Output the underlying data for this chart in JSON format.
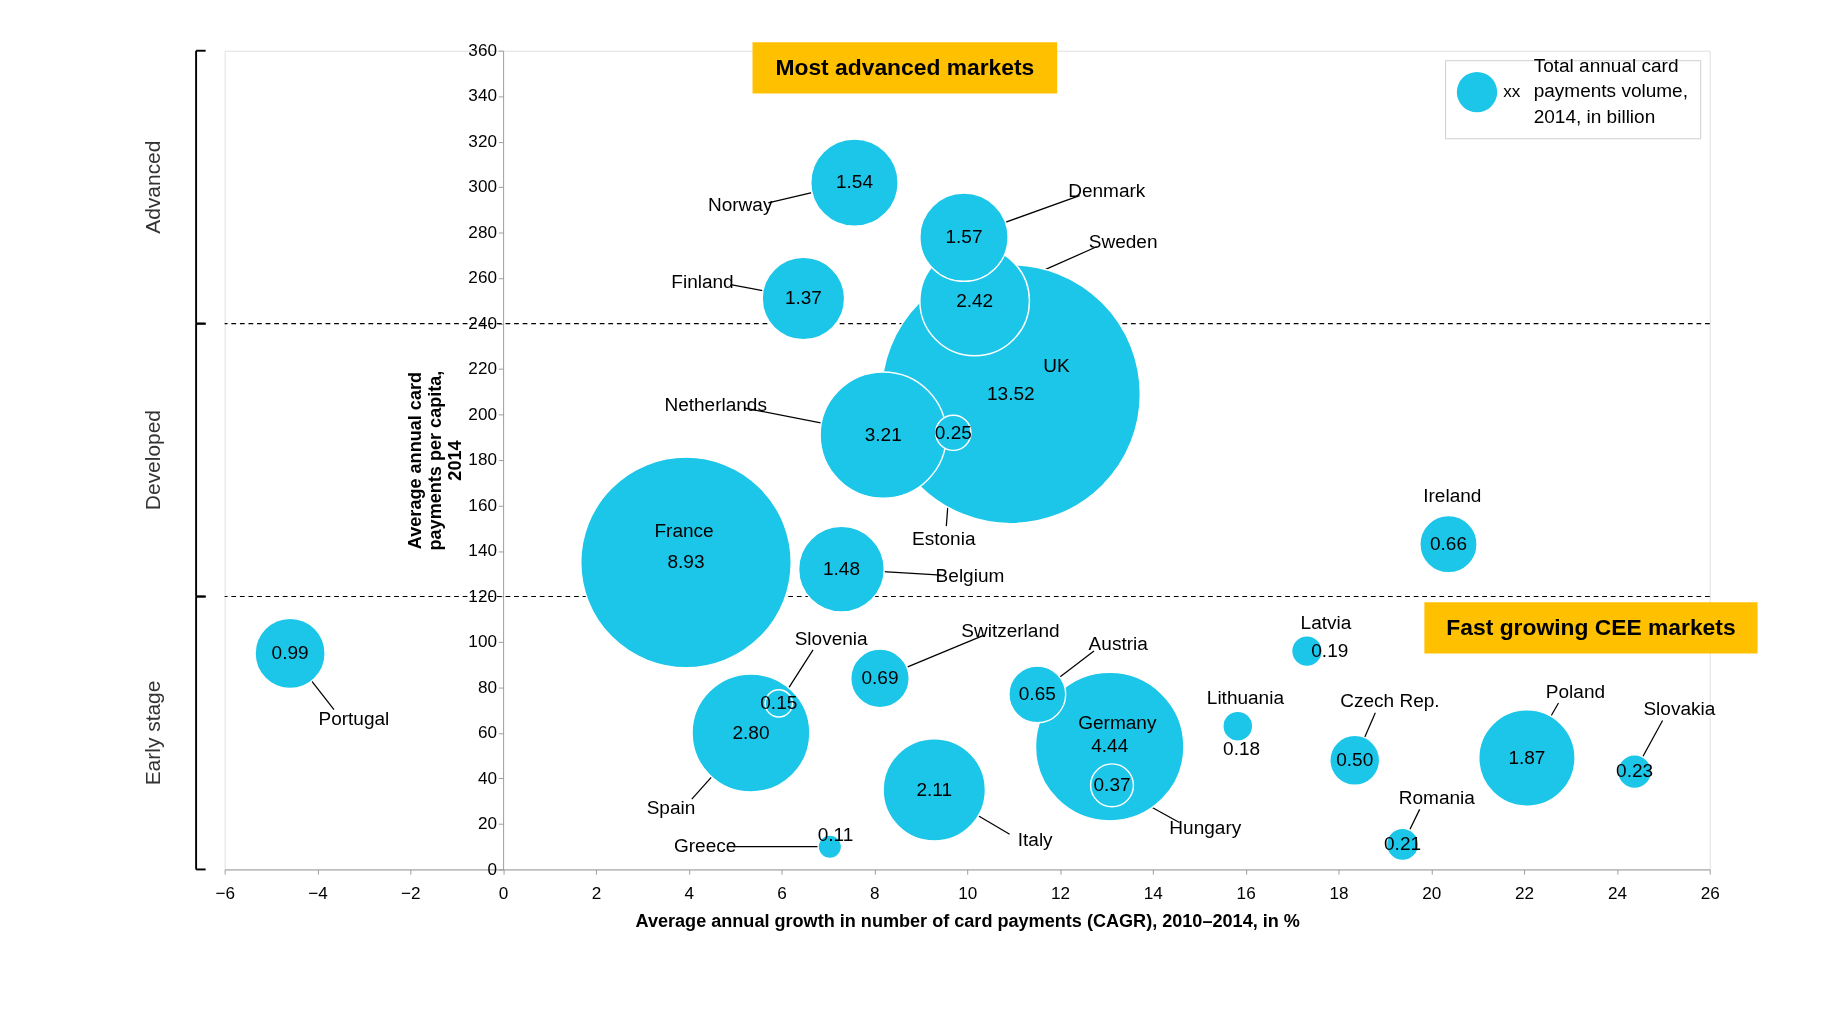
{
  "chart_data": {
    "type": "bubble",
    "xlabel": "Average annual growth  in number of card payments  (CAGR), 2010–2014, in %",
    "ylabel": "Average annual card payments per capita, 2014",
    "legend_title": "Total annual card payments volume, 2014, in billion",
    "legend": "top right",
    "grid": false,
    "xlim": [
      -6,
      26
    ],
    "xticks": [
      -6,
      -4,
      -2,
      0,
      2,
      4,
      6,
      8,
      10,
      12,
      14,
      16,
      18,
      20,
      22,
      24,
      26
    ],
    "ylim": [
      0,
      360
    ],
    "yticks": [
      0,
      20,
      40,
      60,
      80,
      100,
      120,
      140,
      160,
      180,
      200,
      220,
      240,
      260,
      280,
      300,
      320,
      340,
      360
    ],
    "series": [
      {
        "name": "xx",
        "color": "#1cc6e8",
        "x": [
          -4.59,
          7.57,
          9.93,
          10.16,
          6.47,
          10.94,
          8.19,
          9.7,
          3.94,
          7.29,
          20.37,
          5.94,
          5.34,
          8.12,
          11.51,
          13.07,
          13.12,
          9.29,
          7.04,
          17.32,
          15.83,
          18.35,
          22.06,
          24.38,
          19.38
        ],
        "values": [
          95,
          302,
          278,
          250,
          251,
          209,
          191,
          192,
          135,
          132,
          143,
          73,
          60,
          84,
          77,
          54,
          37,
          35,
          10,
          96,
          63,
          48,
          49,
          43,
          11
        ],
        "sizes": [
          0.99,
          1.54,
          1.57,
          2.42,
          1.37,
          13.52,
          3.21,
          0.25,
          8.93,
          1.48,
          0.66,
          0.15,
          2.8,
          0.69,
          0.65,
          4.44,
          0.37,
          2.11,
          0.11,
          0.19,
          0.18,
          0.5,
          1.87,
          0.23,
          0.21
        ],
        "value_labels": [
          "0.99",
          "1.54",
          "1.57",
          "2.42",
          "1.37",
          "13.52",
          "3.21",
          "0.25",
          "8.93",
          "1.48",
          "0.66",
          "0.15",
          "2.80",
          "0.69",
          "0.65",
          "4.44",
          "0.37",
          "2.11",
          "0.11",
          "0.19",
          "0.18",
          "0.50",
          "1.87",
          "0.23",
          "0.21"
        ]
      }
    ],
    "ref_lines": [
      {
        "axis": "y",
        "value": 240,
        "line_style": "dashed",
        "color": "#000000"
      },
      {
        "axis": "y",
        "value": 120,
        "line_style": "dashed",
        "color": "#000000"
      }
    ],
    "annotations": [
      {
        "text": "Portugal",
        "x": -4.59,
        "y": 95
      },
      {
        "text": "Norway",
        "x": 7.57,
        "y": 302
      },
      {
        "text": "Denmark",
        "x": 9.93,
        "y": 278
      },
      {
        "text": "Sweden",
        "x": 10.16,
        "y": 250
      },
      {
        "text": "Finland",
        "x": 6.47,
        "y": 251
      },
      {
        "text": "UK",
        "x": 10.94,
        "y": 209
      },
      {
        "text": "Netherlands",
        "x": 8.19,
        "y": 191
      },
      {
        "text": "Estonia",
        "x": 9.7,
        "y": 192
      },
      {
        "text": "France",
        "x": 3.94,
        "y": 135
      },
      {
        "text": "Belgium",
        "x": 7.29,
        "y": 132
      },
      {
        "text": "Ireland",
        "x": 20.37,
        "y": 143
      },
      {
        "text": "Slovenia",
        "x": 5.94,
        "y": 73
      },
      {
        "text": "Spain",
        "x": 5.34,
        "y": 60
      },
      {
        "text": "Switzerland",
        "x": 8.12,
        "y": 84
      },
      {
        "text": "Austria",
        "x": 11.51,
        "y": 77
      },
      {
        "text": "Germany",
        "x": 13.07,
        "y": 54
      },
      {
        "text": "Hungary",
        "x": 13.12,
        "y": 37
      },
      {
        "text": "Italy",
        "x": 9.29,
        "y": 35
      },
      {
        "text": "Greece",
        "x": 7.04,
        "y": 10
      },
      {
        "text": "Latvia",
        "x": 17.32,
        "y": 96
      },
      {
        "text": "Lithuania",
        "x": 15.83,
        "y": 63
      },
      {
        "text": "Czech Rep.",
        "x": 18.35,
        "y": 48
      },
      {
        "text": "Poland",
        "x": 22.06,
        "y": 49
      },
      {
        "text": "Slovakia",
        "x": 24.38,
        "y": 43
      },
      {
        "text": "Romania",
        "x": 19.38,
        "y": 11
      },
      "Most advanced markets",
      "Fast growing CEE markets",
      "Advanced",
      "Developed",
      "Early stage"
    ]
  }
}
